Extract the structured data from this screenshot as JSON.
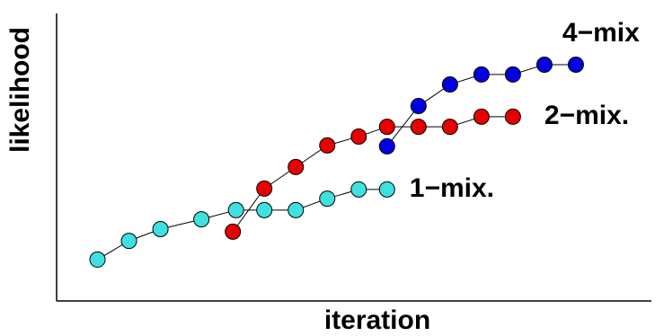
{
  "chart_data": {
    "type": "line",
    "x_label": "iteration",
    "y_label": "likelihood",
    "xlim": [
      0,
      18.9
    ],
    "ylim": [
      0,
      100
    ],
    "series": [
      {
        "name": "1−mix.",
        "color": "#3fe0e0",
        "x": [
          1.3,
          2.3,
          3.3,
          4.6,
          5.7,
          6.6,
          7.6,
          8.6,
          9.6,
          10.5
        ],
        "values": [
          14.4,
          20.9,
          25,
          28.4,
          31.6,
          31.6,
          31.6,
          35.6,
          38.8,
          38.8
        ]
      },
      {
        "name": "2−mix.",
        "color": "#e60000",
        "x": [
          5.6,
          6.6,
          7.6,
          8.6,
          9.6,
          10.5,
          11.5,
          12.5,
          13.5,
          14.5
        ],
        "values": [
          24.1,
          39.1,
          46.6,
          54.1,
          57.2,
          60.6,
          60.6,
          60.6,
          64.1,
          64.1
        ]
      },
      {
        "name": "4−mix",
        "color": "#0000e0",
        "x": [
          10.5,
          11.5,
          12.5,
          13.5,
          14.5,
          15.5,
          16.5
        ],
        "values": [
          53.8,
          67.8,
          75.3,
          78.8,
          78.8,
          82.2,
          82.2
        ]
      }
    ]
  }
}
